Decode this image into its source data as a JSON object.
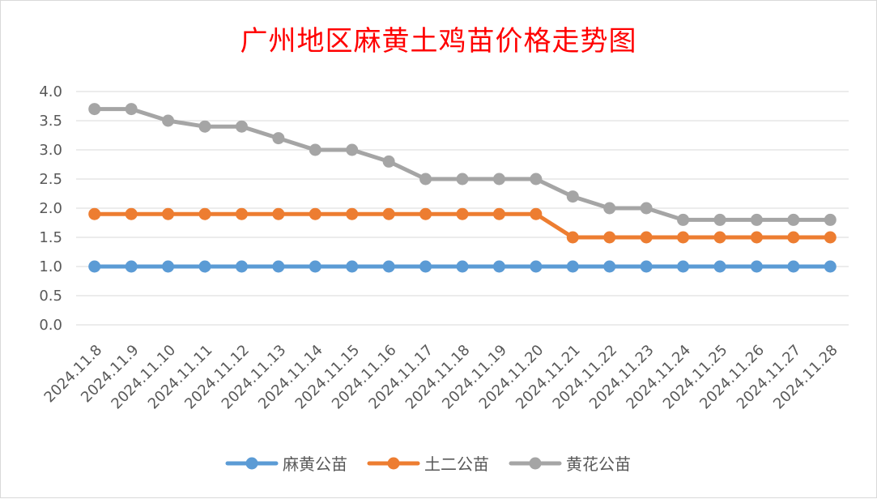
{
  "chart_data": {
    "type": "line",
    "title": "广州地区麻黄土鸡苗价格走势图",
    "xlabel": "",
    "ylabel": "",
    "ylim": [
      0,
      4
    ],
    "yticks": [
      "0.0",
      "0.5",
      "1.0",
      "1.5",
      "2.0",
      "2.5",
      "3.0",
      "3.5",
      "4.0"
    ],
    "grid": true,
    "legend_position": "bottom",
    "categories": [
      "2024.11.8",
      "2024.11.9",
      "2024.11.10",
      "2024.11.11",
      "2024.11.12",
      "2024.11.13",
      "2024.11.14",
      "2024.11.15",
      "2024.11.16",
      "2024.11.17",
      "2024.11.18",
      "2024.11.19",
      "2024.11.20",
      "2024.11.21",
      "2024.11.22",
      "2024.11.23",
      "2024.11.24",
      "2024.11.25",
      "2024.11.26",
      "2024.11.27",
      "2024.11.28"
    ],
    "series": [
      {
        "name": "麻黄公苗",
        "color": "#5b9bd5",
        "values": [
          1.0,
          1.0,
          1.0,
          1.0,
          1.0,
          1.0,
          1.0,
          1.0,
          1.0,
          1.0,
          1.0,
          1.0,
          1.0,
          1.0,
          1.0,
          1.0,
          1.0,
          1.0,
          1.0,
          1.0,
          1.0
        ]
      },
      {
        "name": "土二公苗",
        "color": "#ed7d31",
        "values": [
          1.9,
          1.9,
          1.9,
          1.9,
          1.9,
          1.9,
          1.9,
          1.9,
          1.9,
          1.9,
          1.9,
          1.9,
          1.9,
          1.5,
          1.5,
          1.5,
          1.5,
          1.5,
          1.5,
          1.5,
          1.5
        ]
      },
      {
        "name": "黄花公苗",
        "color": "#a5a5a5",
        "values": [
          3.7,
          3.7,
          3.5,
          3.4,
          3.4,
          3.2,
          3.0,
          3.0,
          2.8,
          2.5,
          2.5,
          2.5,
          2.5,
          2.2,
          2.0,
          2.0,
          1.8,
          1.8,
          1.8,
          1.8,
          1.8
        ]
      }
    ]
  }
}
